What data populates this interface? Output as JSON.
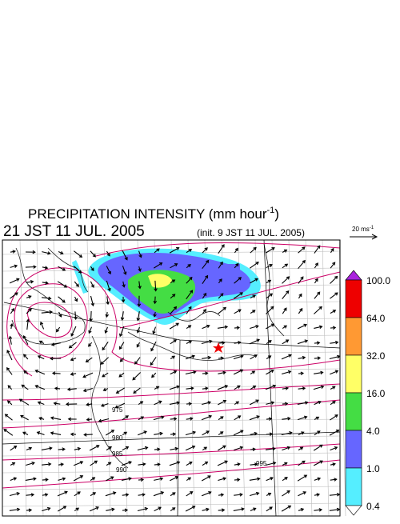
{
  "header": {
    "title": "PRECIPITATION INTENSITY (mm hour",
    "title_exponent": "-1",
    "title_close": ")",
    "valid_time": "21 JST 11 JUL. 2005",
    "init_time": "(init. 9 JST 11 JUL. 2005)"
  },
  "vector_scale": {
    "label": "20 ms",
    "exponent": "-1"
  },
  "colorbar": {
    "levels": [
      {
        "value": 100,
        "label": "100.0"
      },
      {
        "value": 64,
        "label": "64.0"
      },
      {
        "value": 32,
        "label": "32.0"
      },
      {
        "value": 16,
        "label": "16.0"
      },
      {
        "value": 4,
        "label": "4.0"
      },
      {
        "value": 1,
        "label": "1.0"
      },
      {
        "value": 0.4,
        "label": "0.4"
      }
    ],
    "colors": [
      "#ee0000",
      "#ff9933",
      "#ffff66",
      "#44dd44",
      "#6666ff",
      "#55eeff"
    ],
    "over_color": "#aa22dd"
  },
  "contour_labels": [
    "975",
    "980",
    "985",
    "990",
    "995"
  ]
}
